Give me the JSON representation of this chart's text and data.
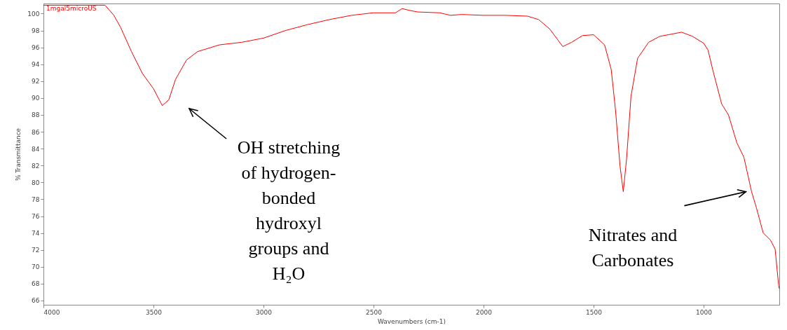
{
  "chart_data": {
    "type": "line",
    "xlabel": "Wavenumbers (cm-1)",
    "ylabel": "% Transmittance",
    "xlim": [
      4000,
      656
    ],
    "ylim": [
      65.5,
      101.2
    ],
    "xticks": [
      4000,
      3500,
      3000,
      2500,
      2000,
      1500,
      1000
    ],
    "yticks": [
      66,
      68,
      70,
      72,
      74,
      76,
      78,
      80,
      82,
      84,
      86,
      88,
      90,
      92,
      94,
      96,
      98,
      100
    ],
    "grid": false,
    "legend": false,
    "marker": "none",
    "line_style": "solid",
    "x": [
      4000,
      3750,
      3720,
      3680,
      3650,
      3600,
      3550,
      3500,
      3460,
      3430,
      3400,
      3350,
      3300,
      3200,
      3100,
      3000,
      2900,
      2800,
      2700,
      2600,
      2500,
      2400,
      2370,
      2340,
      2300,
      2200,
      2150,
      2100,
      2000,
      1900,
      1800,
      1750,
      1700,
      1640,
      1600,
      1550,
      1500,
      1450,
      1420,
      1400,
      1380,
      1365,
      1350,
      1330,
      1300,
      1250,
      1200,
      1100,
      1050,
      1000,
      980,
      959,
      918,
      887,
      849,
      817,
      782,
      760,
      729,
      697,
      675,
      659,
      656
    ],
    "series": [
      {
        "name": "1mgal5microUS",
        "color": "#ff0000",
        "values": [
          101.0,
          101.0,
          101.0,
          99.8,
          98.4,
          95.5,
          92.9,
          91.1,
          89.1,
          89.8,
          92.2,
          94.5,
          95.5,
          96.3,
          96.6,
          97.1,
          98.0,
          98.7,
          99.3,
          99.8,
          100.1,
          100.1,
          100.6,
          100.4,
          100.2,
          100.1,
          99.8,
          99.9,
          99.8,
          99.8,
          99.7,
          99.3,
          98.2,
          96.1,
          96.6,
          97.4,
          97.5,
          96.3,
          93.4,
          88.5,
          82.0,
          78.9,
          82.8,
          90.2,
          94.7,
          96.6,
          97.3,
          97.8,
          97.3,
          96.5,
          95.7,
          93.4,
          89.3,
          88.0,
          84.7,
          83.0,
          78.9,
          77.0,
          74.0,
          73.2,
          72.1,
          67.8,
          67.4
        ]
      }
    ],
    "annotations": [
      "OH stretching of hydrogen-bonded hydroxyl groups and H₂O",
      {
        "text": "Nitrates and Carbonates",
        "x": 782,
        "y": 78.9
      }
    ]
  }
}
